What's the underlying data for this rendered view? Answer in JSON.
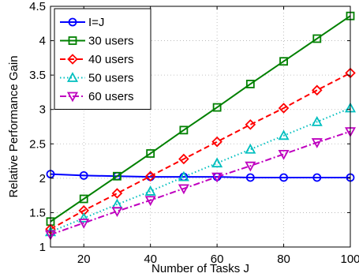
{
  "chart_data": {
    "type": "line",
    "xlabel": "Number of Tasks J",
    "ylabel": "Relative Performance Gain",
    "xlim": [
      10,
      100
    ],
    "ylim": [
      1,
      4.5
    ],
    "xticks": [
      20,
      40,
      60,
      80,
      100
    ],
    "yticks": [
      1,
      1.5,
      2,
      2.5,
      3,
      3.5,
      4,
      4.5
    ],
    "grid": true,
    "legend_position": "top-left",
    "x": [
      10,
      20,
      30,
      40,
      50,
      60,
      70,
      80,
      90,
      100
    ],
    "series": [
      {
        "name": "I=J",
        "color": "#0000ff",
        "dash": "solid",
        "marker": "circle",
        "values": [
          2.06,
          2.04,
          2.03,
          2.02,
          2.02,
          2.02,
          2.01,
          2.01,
          2.01,
          2.01
        ]
      },
      {
        "name": "30 users",
        "color": "#008000",
        "dash": "solid",
        "marker": "square",
        "values": [
          1.37,
          1.7,
          2.03,
          2.36,
          2.7,
          3.03,
          3.37,
          3.7,
          4.03,
          4.36
        ]
      },
      {
        "name": "40 users",
        "color": "#ff0000",
        "dash": "dashed",
        "marker": "diamond",
        "values": [
          1.26,
          1.53,
          1.78,
          2.03,
          2.28,
          2.53,
          2.78,
          3.02,
          3.28,
          3.53
        ]
      },
      {
        "name": "50 users",
        "color": "#00bfbf",
        "dash": "dotted",
        "marker": "triangle-up",
        "values": [
          1.22,
          1.42,
          1.62,
          1.81,
          2.02,
          2.22,
          2.42,
          2.62,
          2.82,
          3.02
        ]
      },
      {
        "name": "60 users",
        "color": "#bf00bf",
        "dash": "dashdot",
        "marker": "triangle-down",
        "values": [
          1.18,
          1.35,
          1.52,
          1.68,
          1.85,
          2.02,
          2.18,
          2.35,
          2.52,
          2.68
        ]
      }
    ]
  }
}
